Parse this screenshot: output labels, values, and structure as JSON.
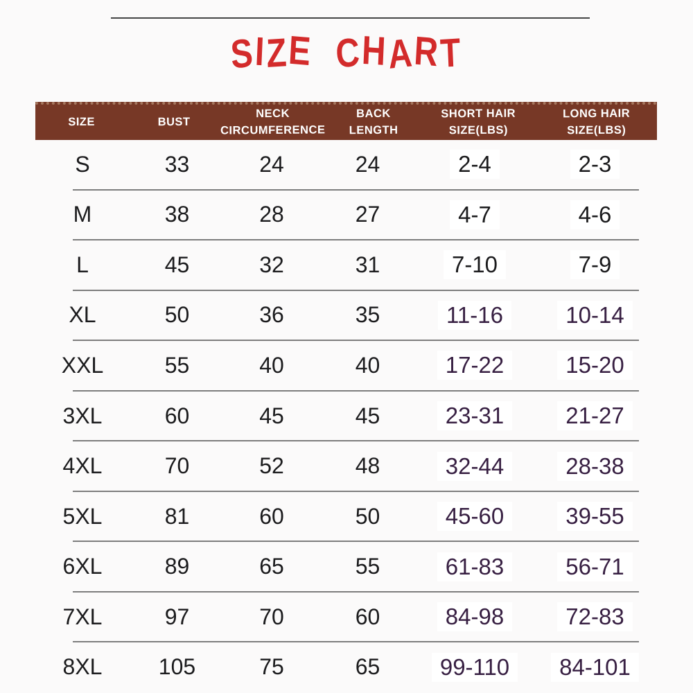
{
  "title": {
    "text": "SIZE CHART"
  },
  "colors": {
    "page_bg": "#fbfafa",
    "title_red": "#d32b2b",
    "header_bg": "#773826",
    "header_text": "#ffffff",
    "body_ink": "#1b1b1d",
    "hair_plum": "#371f42",
    "divider_gray": "#7d7d7d"
  },
  "table": {
    "header": {
      "columns": [
        {
          "id": "size",
          "label": "SIZE"
        },
        {
          "id": "bust",
          "label": "BUST"
        },
        {
          "id": "neck",
          "label": "NECK\nCIRCUMFERENCE"
        },
        {
          "id": "back",
          "label": "BACK\nLENGTH"
        },
        {
          "id": "short_hair",
          "label": "SHORT HAIR\nSIZE(LBS)"
        },
        {
          "id": "long_hair",
          "label": "LONG HAIR\nSIZE(LBS)"
        }
      ]
    },
    "style": {
      "plum_from_row": 3
    },
    "rows": [
      {
        "size": "S",
        "bust": "33",
        "neck": "24",
        "back": "24",
        "short_hair": "2-4",
        "long_hair": "2-3"
      },
      {
        "size": "M",
        "bust": "38",
        "neck": "28",
        "back": "27",
        "short_hair": "4-7",
        "long_hair": "4-6"
      },
      {
        "size": "L",
        "bust": "45",
        "neck": "32",
        "back": "31",
        "short_hair": "7-10",
        "long_hair": "7-9"
      },
      {
        "size": "XL",
        "bust": "50",
        "neck": "36",
        "back": "35",
        "short_hair": "11-16",
        "long_hair": "10-14"
      },
      {
        "size": "XXL",
        "bust": "55",
        "neck": "40",
        "back": "40",
        "short_hair": "17-22",
        "long_hair": "15-20"
      },
      {
        "size": "3XL",
        "bust": "60",
        "neck": "45",
        "back": "45",
        "short_hair": "23-31",
        "long_hair": "21-27"
      },
      {
        "size": "4XL",
        "bust": "70",
        "neck": "52",
        "back": "48",
        "short_hair": "32-44",
        "long_hair": "28-38"
      },
      {
        "size": "5XL",
        "bust": "81",
        "neck": "60",
        "back": "50",
        "short_hair": "45-60",
        "long_hair": "39-55"
      },
      {
        "size": "6XL",
        "bust": "89",
        "neck": "65",
        "back": "55",
        "short_hair": "61-83",
        "long_hair": "56-71"
      },
      {
        "size": "7XL",
        "bust": "97",
        "neck": "70",
        "back": "60",
        "short_hair": "84-98",
        "long_hair": "72-83"
      },
      {
        "size": "8XL",
        "bust": "105",
        "neck": "75",
        "back": "65",
        "short_hair": "99-110",
        "long_hair": "84-101"
      }
    ]
  }
}
